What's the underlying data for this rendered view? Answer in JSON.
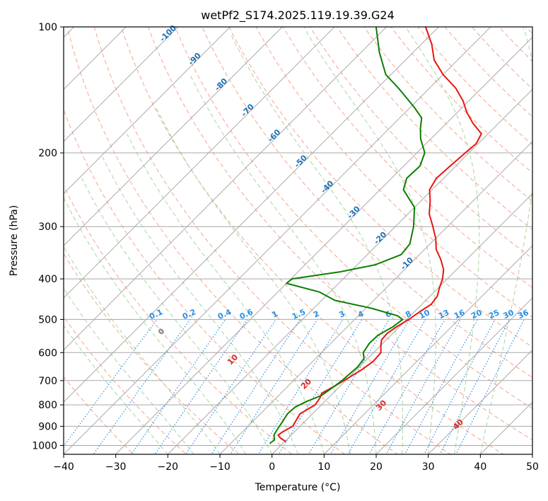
{
  "chart_data": {
    "type": "line",
    "title": "wetPf2_S174.2025.119.19.39.G24",
    "xlabel": "Temperature (°C)",
    "ylabel": "Pressure (hPa)",
    "xlim": [
      -40,
      50
    ],
    "ylim_hpa": [
      1050,
      100
    ],
    "y_scale": "log",
    "skew_deg": 45,
    "grid": true,
    "x_ticks": [
      -40,
      -30,
      -20,
      -10,
      0,
      10,
      20,
      30,
      40,
      50
    ],
    "y_ticks": [
      1000,
      900,
      800,
      700,
      600,
      500,
      400,
      300,
      200,
      100
    ],
    "colors": {
      "temperature": "#e8150f",
      "dewpoint": "#0c7f00",
      "isotherm": "#a0a0a0",
      "dry_adiabat": "#f5a48e",
      "moist_adiabat": "#a8d5a0",
      "mixing_ratio": "#1f86e0",
      "isotherm_labels": "#1f6fb3",
      "dry_adiabat_labels": "#d62728",
      "mixing_ratio_labels": "#2a8fe6"
    },
    "series": [
      {
        "key": "temperature",
        "points": [
          [
            980,
            0.3
          ],
          [
            960,
            -1.5
          ],
          [
            945,
            -2.5
          ],
          [
            930,
            -2.3
          ],
          [
            900,
            -1.4
          ],
          [
            870,
            -1.9
          ],
          [
            840,
            -2.4
          ],
          [
            820,
            -1.8
          ],
          [
            800,
            -1.2
          ],
          [
            770,
            -1.6
          ],
          [
            750,
            -2.2
          ],
          [
            720,
            -1.0
          ],
          [
            690,
            0.0
          ],
          [
            660,
            1.0
          ],
          [
            630,
            1.6
          ],
          [
            600,
            1.4
          ],
          [
            580,
            0.2
          ],
          [
            560,
            -0.9
          ],
          [
            540,
            -1.1
          ],
          [
            520,
            -0.5
          ],
          [
            500,
            0.4
          ],
          [
            480,
            1.0
          ],
          [
            460,
            1.8
          ],
          [
            440,
            1.4
          ],
          [
            420,
            0.2
          ],
          [
            400,
            -0.9
          ],
          [
            380,
            -2.5
          ],
          [
            360,
            -4.9
          ],
          [
            340,
            -7.8
          ],
          [
            320,
            -10.0
          ],
          [
            300,
            -12.8
          ],
          [
            280,
            -15.9
          ],
          [
            260,
            -18.3
          ],
          [
            245,
            -20.5
          ],
          [
            230,
            -21.4
          ],
          [
            215,
            -21.1
          ],
          [
            200,
            -20.7
          ],
          [
            190,
            -20.4
          ],
          [
            180,
            -21.3
          ],
          [
            170,
            -24.9
          ],
          [
            160,
            -28.2
          ],
          [
            150,
            -31.2
          ],
          [
            140,
            -35.0
          ],
          [
            130,
            -40.0
          ],
          [
            120,
            -44.5
          ],
          [
            110,
            -48.0
          ],
          [
            100,
            -52.5
          ]
        ]
      },
      {
        "key": "dewpoint",
        "points": [
          [
            990,
            -2.5
          ],
          [
            970,
            -2.3
          ],
          [
            945,
            -3.3
          ],
          [
            920,
            -3.7
          ],
          [
            880,
            -4.2
          ],
          [
            840,
            -4.8
          ],
          [
            810,
            -4.6
          ],
          [
            785,
            -3.5
          ],
          [
            760,
            -1.8
          ],
          [
            730,
            -1.2
          ],
          [
            700,
            -0.7
          ],
          [
            650,
            -0.3
          ],
          [
            620,
            -0.7
          ],
          [
            600,
            -2.0
          ],
          [
            570,
            -2.6
          ],
          [
            545,
            -2.5
          ],
          [
            520,
            -1.2
          ],
          [
            500,
            -0.8
          ],
          [
            490,
            -2.5
          ],
          [
            470,
            -9.0
          ],
          [
            450,
            -17.5
          ],
          [
            430,
            -22.0
          ],
          [
            410,
            -30.0
          ],
          [
            400,
            -29.8
          ],
          [
            385,
            -22.0
          ],
          [
            370,
            -16.5
          ],
          [
            350,
            -13.5
          ],
          [
            330,
            -13.9
          ],
          [
            300,
            -16.5
          ],
          [
            270,
            -20.0
          ],
          [
            245,
            -25.5
          ],
          [
            230,
            -27.1
          ],
          [
            215,
            -26.9
          ],
          [
            200,
            -28.5
          ],
          [
            185,
            -32.0
          ],
          [
            175,
            -34.0
          ],
          [
            165,
            -35.8
          ],
          [
            155,
            -39.5
          ],
          [
            140,
            -46.0
          ],
          [
            130,
            -51.0
          ],
          [
            115,
            -56.5
          ],
          [
            100,
            -62.0
          ]
        ]
      }
    ],
    "isotherm_labels": [
      -100,
      -90,
      -80,
      -70,
      -60,
      -50,
      -40,
      -30,
      -20,
      -10
    ],
    "dry_adiabat_labels": [
      0,
      10,
      20,
      30,
      40
    ],
    "mixing_ratio_labels": [
      "0.1",
      "0.2",
      "0.4",
      "0.6",
      "1",
      "1.5",
      "2",
      "3",
      "4",
      "6",
      "8",
      "10",
      "13",
      "16",
      "20",
      "25",
      "30",
      "36"
    ]
  }
}
